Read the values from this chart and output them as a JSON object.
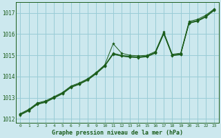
{
  "title": "Graphe pression niveau de la mer (hPa)",
  "bg_color": "#cce8ee",
  "grid_color": "#99ccd6",
  "line_color": "#1a5c1a",
  "marker_color": "#1a5c1a",
  "x_ticks": [
    0,
    1,
    2,
    3,
    4,
    5,
    6,
    7,
    8,
    9,
    10,
    11,
    12,
    13,
    14,
    15,
    16,
    17,
    18,
    19,
    20,
    21,
    22,
    23
  ],
  "ylim": [
    1011.8,
    1017.5
  ],
  "yticks": [
    1012,
    1013,
    1014,
    1015,
    1016,
    1017
  ],
  "series": [
    [
      1012.25,
      1012.45,
      1012.75,
      1012.85,
      1013.05,
      1013.25,
      1013.55,
      1013.7,
      1013.9,
      1014.2,
      1014.55,
      1015.55,
      1015.1,
      1015.0,
      1014.98,
      1015.0,
      1015.18,
      1016.1,
      1015.05,
      1015.1,
      1016.6,
      1016.7,
      1016.9,
      1017.2
    ],
    [
      1012.22,
      1012.42,
      1012.72,
      1012.82,
      1013.02,
      1013.22,
      1013.52,
      1013.67,
      1013.87,
      1014.17,
      1014.52,
      1015.1,
      1015.0,
      1014.95,
      1014.93,
      1014.97,
      1015.14,
      1016.05,
      1015.02,
      1015.07,
      1016.55,
      1016.65,
      1016.85,
      1017.17
    ],
    [
      1012.2,
      1012.4,
      1012.7,
      1012.8,
      1013.0,
      1013.2,
      1013.5,
      1013.65,
      1013.85,
      1014.15,
      1014.5,
      1015.07,
      1014.98,
      1014.93,
      1014.91,
      1014.95,
      1015.12,
      1016.03,
      1015.0,
      1015.05,
      1016.53,
      1016.63,
      1016.83,
      1017.15
    ],
    [
      1012.18,
      1012.38,
      1012.68,
      1012.78,
      1012.98,
      1013.18,
      1013.48,
      1013.63,
      1013.83,
      1014.13,
      1014.48,
      1015.05,
      1014.96,
      1014.91,
      1014.89,
      1014.93,
      1015.1,
      1016.01,
      1014.98,
      1015.03,
      1016.51,
      1016.61,
      1016.81,
      1017.13
    ]
  ]
}
